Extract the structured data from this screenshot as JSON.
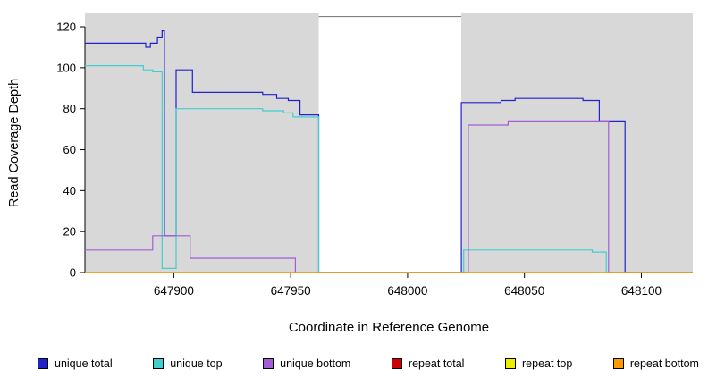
{
  "chart_data": {
    "type": "line",
    "title": "",
    "xlabel": "Coordinate in Reference Genome",
    "ylabel": "Read Coverage Depth",
    "xlim": [
      647862,
      648122
    ],
    "ylim": [
      0,
      127
    ],
    "x_ticks": [
      647900,
      647950,
      648000,
      648050,
      648100
    ],
    "y_ticks": [
      0,
      20,
      40,
      60,
      80,
      100,
      120
    ],
    "grid": false,
    "legend_position": "bottom",
    "plot_background": "#ffffff",
    "shaded_regions": [
      {
        "x0": 647862,
        "x1": 647962,
        "color": "#d8d8d8"
      },
      {
        "x0": 648023,
        "x1": 648122,
        "color": "#d8d8d8"
      }
    ],
    "gap_top_line": {
      "x0": 647962,
      "x1": 648023,
      "y": 125,
      "color": "#808080"
    },
    "series": [
      {
        "name": "unique total",
        "color": "#2222cc",
        "step": true,
        "points": [
          [
            647862,
            112
          ],
          [
            647888,
            110
          ],
          [
            647890,
            112
          ],
          [
            647893,
            115
          ],
          [
            647895,
            118
          ],
          [
            647896,
            18
          ],
          [
            647901,
            99
          ],
          [
            647908,
            88
          ],
          [
            647938,
            87
          ],
          [
            647944,
            85
          ],
          [
            647949,
            84
          ],
          [
            647954,
            77
          ],
          [
            647962,
            0
          ],
          [
            648023,
            83
          ],
          [
            648040,
            84
          ],
          [
            648046,
            85
          ],
          [
            648075,
            84
          ],
          [
            648082,
            74
          ],
          [
            648093,
            0
          ],
          [
            648122,
            0
          ]
        ]
      },
      {
        "name": "unique top",
        "color": "#3fcfcf",
        "step": true,
        "points": [
          [
            647862,
            101
          ],
          [
            647887,
            99
          ],
          [
            647891,
            98
          ],
          [
            647895,
            2
          ],
          [
            647901,
            80
          ],
          [
            647938,
            79
          ],
          [
            647947,
            78
          ],
          [
            647951,
            76
          ],
          [
            647962,
            0
          ],
          [
            648024,
            11
          ],
          [
            648079,
            10
          ],
          [
            648085,
            0
          ],
          [
            648122,
            0
          ]
        ]
      },
      {
        "name": "unique bottom",
        "color": "#a35bd6",
        "step": true,
        "points": [
          [
            647862,
            11
          ],
          [
            647891,
            18
          ],
          [
            647907,
            7
          ],
          [
            647952,
            0
          ],
          [
            648026,
            72
          ],
          [
            648043,
            74
          ],
          [
            648086,
            0
          ],
          [
            648122,
            0
          ]
        ]
      },
      {
        "name": "repeat total",
        "color": "#cc0000",
        "step": true,
        "points": [
          [
            647862,
            0
          ],
          [
            648122,
            0
          ]
        ]
      },
      {
        "name": "repeat top",
        "color": "#eded00",
        "step": true,
        "points": [
          [
            647862,
            0
          ],
          [
            648122,
            0
          ]
        ]
      },
      {
        "name": "repeat bottom",
        "color": "#ff9900",
        "step": true,
        "points": [
          [
            647862,
            0
          ],
          [
            648122,
            0
          ]
        ]
      }
    ],
    "legend": [
      {
        "label": "unique total",
        "color": "#2222cc"
      },
      {
        "label": "unique top",
        "color": "#3fcfcf"
      },
      {
        "label": "unique bottom",
        "color": "#a35bd6"
      },
      {
        "label": "repeat total",
        "color": "#cc0000"
      },
      {
        "label": "repeat top",
        "color": "#eded00"
      },
      {
        "label": "repeat bottom",
        "color": "#ff9900"
      }
    ]
  }
}
